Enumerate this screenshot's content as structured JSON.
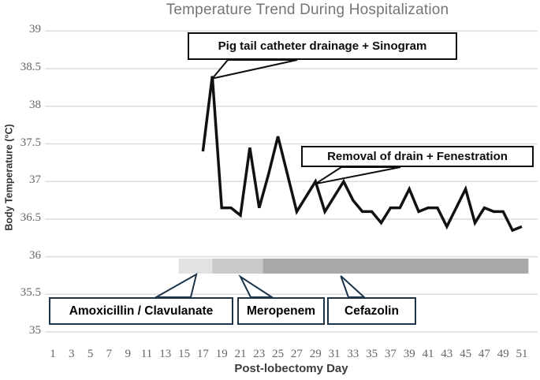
{
  "chart_data": {
    "type": "line",
    "title": "Temperature Trend During Hospitalization",
    "xlabel": "Post-lobectomy Day",
    "ylabel": "Body Temperature (°C)",
    "ylim": [
      35,
      39
    ],
    "grid": true,
    "legend": "none",
    "y_ticks": [
      39,
      38.5,
      38,
      37.5,
      37,
      36.5,
      36,
      35.5,
      35
    ],
    "x_ticks": [
      1,
      3,
      5,
      7,
      9,
      11,
      13,
      15,
      17,
      19,
      21,
      23,
      25,
      27,
      29,
      31,
      33,
      35,
      37,
      39,
      41,
      43,
      45,
      47,
      49,
      51
    ],
    "series": [
      {
        "name": "Body temperature",
        "color": "#111111",
        "points": [
          [
            17,
            37.4
          ],
          [
            18,
            38.4
          ],
          [
            19,
            36.65
          ],
          [
            20,
            36.65
          ],
          [
            21,
            36.55
          ],
          [
            22,
            37.45
          ],
          [
            23,
            36.65
          ],
          [
            24,
            37.1
          ],
          [
            25,
            37.6
          ],
          [
            26,
            37.1
          ],
          [
            27,
            36.6
          ],
          [
            28,
            36.8
          ],
          [
            29,
            37.0
          ],
          [
            30,
            36.6
          ],
          [
            31,
            36.8
          ],
          [
            32,
            37.0
          ],
          [
            33,
            36.75
          ],
          [
            34,
            36.6
          ],
          [
            35,
            36.6
          ],
          [
            36,
            36.45
          ],
          [
            37,
            36.65
          ],
          [
            38,
            36.65
          ],
          [
            39,
            36.9
          ],
          [
            40,
            36.6
          ],
          [
            41,
            36.65
          ],
          [
            42,
            36.65
          ],
          [
            43,
            36.4
          ],
          [
            44,
            36.65
          ],
          [
            45,
            36.9
          ],
          [
            46,
            36.45
          ],
          [
            47,
            36.65
          ],
          [
            48,
            36.6
          ],
          [
            49,
            36.6
          ],
          [
            50,
            36.35
          ],
          [
            51,
            36.4
          ]
        ]
      }
    ],
    "annotations": [
      {
        "label": "Pig tail catheter drainage + Sinogram",
        "target_day": 18,
        "target_temp": 38.4
      },
      {
        "label": "Removal of drain + Fenestration",
        "target_day": 29,
        "target_temp": 37.0
      }
    ],
    "antibiotic_bars": [
      {
        "label": "Amoxicillin / Clavulanate",
        "start_day": 14.4,
        "end_day": 18,
        "color": "#e2e2e2"
      },
      {
        "label": "Meropenem",
        "start_day": 18,
        "end_day": 23.4,
        "color": "#c9c9c9"
      },
      {
        "label": "Cefazolin",
        "start_day": 23.4,
        "end_day": 51.7,
        "color": "#a9a9a9"
      }
    ],
    "colors": {
      "gridline": "#dcdcdc",
      "line": "#111111",
      "title_text": "#757575",
      "tick_text": "#666666",
      "annotation_border": "#0d0d0d",
      "drug_box_border": "#1e3448"
    }
  }
}
